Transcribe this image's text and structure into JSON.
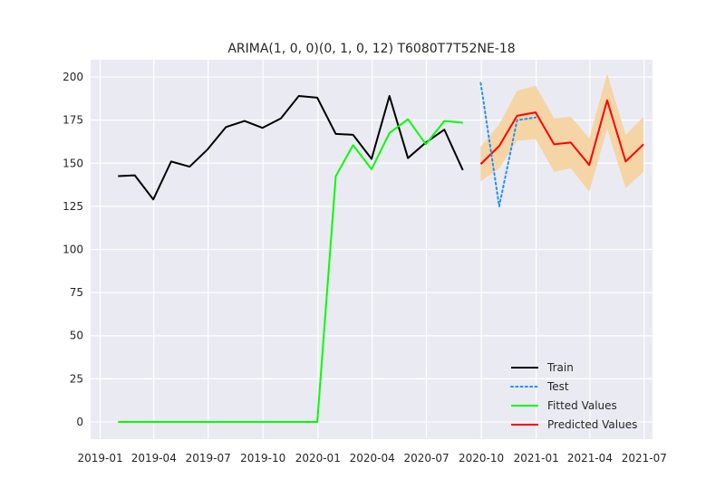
{
  "chart_data": {
    "type": "line",
    "title": "ARIMA(1, 0, 0)(0, 1, 0, 12) T6080T7T52NE-18",
    "xlabel": "",
    "ylabel": "",
    "ylim": [
      -10,
      210
    ],
    "xlim": [
      "2018-12-16",
      "2021-07-15"
    ],
    "grid": true,
    "legend_position": "lower-right",
    "x_ticks": [
      "2019-01",
      "2019-04",
      "2019-07",
      "2019-10",
      "2020-01",
      "2020-04",
      "2020-07",
      "2020-10",
      "2021-01",
      "2021-04",
      "2021-07"
    ],
    "y_ticks": [
      0,
      25,
      50,
      75,
      100,
      125,
      150,
      175,
      200
    ],
    "colors": {
      "background": "#EAEAF2",
      "grid": "#FFFFFF",
      "train": "#000000",
      "test": "#1E90FF",
      "fitted": "#00FF00",
      "predicted": "#FF0000",
      "confidence": "#F5D5A6"
    },
    "series": [
      {
        "name": "Train",
        "style": "solid",
        "x": [
          "2019-01-31",
          "2019-02-28",
          "2019-03-31",
          "2019-04-30",
          "2019-05-31",
          "2019-06-30",
          "2019-07-31",
          "2019-08-31",
          "2019-09-30",
          "2019-10-31",
          "2019-11-30",
          "2019-12-31",
          "2020-01-31",
          "2020-02-29",
          "2020-03-31",
          "2020-04-30",
          "2020-05-31",
          "2020-06-30",
          "2020-07-31",
          "2020-08-31"
        ],
        "values": [
          142.5,
          143,
          129,
          151,
          148,
          158,
          171,
          174.5,
          170.5,
          176,
          189,
          188,
          167,
          166.5,
          152.5,
          189,
          153,
          162,
          169.5,
          146
        ]
      },
      {
        "name": "Test",
        "style": "dotted",
        "x": [
          "2020-09-30",
          "2020-10-31",
          "2020-11-30",
          "2020-12-31",
          "2021-01-31",
          "2021-02-28",
          "2021-03-31",
          "2021-04-30",
          "2021-05-31",
          "2021-06-30"
        ],
        "values": [
          196.5,
          125,
          175,
          176.5,
          null,
          null,
          null,
          null,
          null,
          null
        ]
      },
      {
        "name": "Fitted Values",
        "style": "solid",
        "x": [
          "2019-01-31",
          "2019-02-28",
          "2019-03-31",
          "2019-04-30",
          "2019-05-31",
          "2019-06-30",
          "2019-07-31",
          "2019-08-31",
          "2019-09-30",
          "2019-10-31",
          "2019-11-30",
          "2019-12-31",
          "2020-01-31",
          "2020-02-29",
          "2020-03-31",
          "2020-04-30",
          "2020-05-31",
          "2020-06-30",
          "2020-07-31",
          "2020-08-31"
        ],
        "values": [
          0,
          0,
          0,
          0,
          0,
          0,
          0,
          0,
          0,
          0,
          0,
          0,
          142.5,
          160.5,
          146.5,
          167.5,
          175.5,
          161,
          174.5,
          173.5
        ]
      },
      {
        "name": "Predicted Values",
        "style": "solid",
        "x": [
          "2020-09-30",
          "2020-10-31",
          "2020-11-30",
          "2020-12-31",
          "2021-01-31",
          "2021-02-28",
          "2021-03-31",
          "2021-04-30",
          "2021-05-31",
          "2021-06-30"
        ],
        "values": [
          149.5,
          160,
          177.5,
          179.5,
          161,
          162,
          149,
          186.5,
          151,
          161
        ],
        "lower": [
          139.5,
          147,
          163,
          164,
          145,
          147,
          133.5,
          170,
          135.5,
          145
        ],
        "upper": [
          159.5,
          172.5,
          192,
          195,
          176,
          177,
          164.5,
          202,
          166.5,
          177
        ]
      }
    ]
  }
}
